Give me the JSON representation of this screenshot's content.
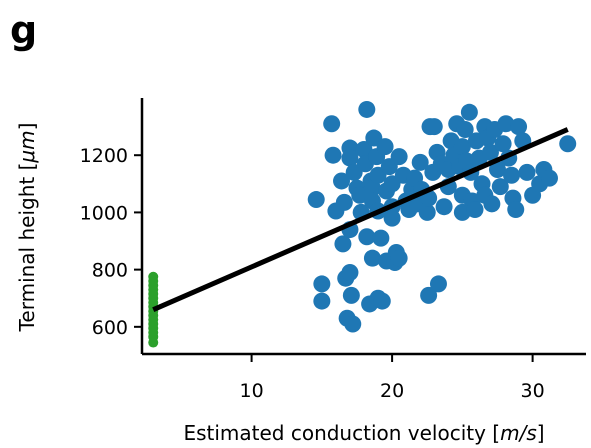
{
  "panel_label": "g",
  "chart_data": {
    "type": "scatter",
    "xlabel_text": "Estimated conduction velocity [",
    "xlabel_unit": "m/s",
    "xlabel_end": "]",
    "ylabel_text": "Terminal height [",
    "ylabel_unit": "μm",
    "ylabel_end": "]",
    "xlim": [
      2.2,
      33.8
    ],
    "ylim": [
      505,
      1400
    ],
    "xticks": [
      10,
      20,
      30
    ],
    "yticks": [
      600,
      800,
      1000,
      1200
    ],
    "grid": false,
    "colors": {
      "blue": "#1f77b4",
      "green": "#2ca02c",
      "fit": "#000000"
    },
    "series": [
      {
        "color": "green",
        "points": [
          [
            3,
            545
          ],
          [
            3,
            565
          ],
          [
            3,
            580
          ],
          [
            3,
            595
          ],
          [
            3,
            610
          ],
          [
            3,
            625
          ],
          [
            3,
            640
          ],
          [
            3,
            655
          ],
          [
            3,
            670
          ],
          [
            3,
            685
          ],
          [
            3,
            700
          ],
          [
            3,
            715
          ],
          [
            3,
            730
          ],
          [
            3,
            745
          ],
          [
            3,
            760
          ],
          [
            3,
            775
          ]
        ]
      },
      {
        "color": "blue",
        "points": [
          [
            14.6,
            1045
          ],
          [
            15,
            750
          ],
          [
            15,
            690
          ],
          [
            15.7,
            1310
          ],
          [
            15.8,
            1200
          ],
          [
            16,
            1005
          ],
          [
            16.4,
            1110
          ],
          [
            16.5,
            890
          ],
          [
            16.6,
            1035
          ],
          [
            16.7,
            770
          ],
          [
            16.8,
            630
          ],
          [
            17,
            1225
          ],
          [
            17,
            1190
          ],
          [
            17,
            940
          ],
          [
            17,
            790
          ],
          [
            17.1,
            710
          ],
          [
            17.2,
            610
          ],
          [
            17.3,
            1140
          ],
          [
            17.5,
            1085
          ],
          [
            17.7,
            1060
          ],
          [
            17.8,
            1000
          ],
          [
            18,
            1220
          ],
          [
            18.1,
            1170
          ],
          [
            18.2,
            1360
          ],
          [
            18.2,
            915
          ],
          [
            18.4,
            680
          ],
          [
            18.5,
            1110
          ],
          [
            18.6,
            1085
          ],
          [
            18.6,
            1040
          ],
          [
            18.6,
            840
          ],
          [
            18.7,
            1260
          ],
          [
            18.9,
            1195
          ],
          [
            19,
            1130
          ],
          [
            19,
            1005
          ],
          [
            19,
            700
          ],
          [
            19.2,
            910
          ],
          [
            19.3,
            690
          ],
          [
            19.5,
            1230
          ],
          [
            19.6,
            1075
          ],
          [
            19.6,
            830
          ],
          [
            19.8,
            1160
          ],
          [
            20,
            1100
          ],
          [
            20,
            1020
          ],
          [
            20,
            980
          ],
          [
            20.2,
            825
          ],
          [
            20.3,
            860
          ],
          [
            20.5,
            1195
          ],
          [
            20.5,
            840
          ],
          [
            20.8,
            1130
          ],
          [
            21,
            1040
          ],
          [
            21.2,
            1010
          ],
          [
            21.4,
            1080
          ],
          [
            21.6,
            1120
          ],
          [
            21.8,
            1030
          ],
          [
            22,
            1175
          ],
          [
            22.1,
            1080
          ],
          [
            22.4,
            1060
          ],
          [
            22.5,
            1000
          ],
          [
            22.6,
            1050
          ],
          [
            22.6,
            710
          ],
          [
            22.7,
            1300
          ],
          [
            22.9,
            1140
          ],
          [
            23,
            1300
          ],
          [
            23.2,
            1210
          ],
          [
            23.3,
            750
          ],
          [
            23.5,
            1170
          ],
          [
            23.7,
            1020
          ],
          [
            24,
            1150
          ],
          [
            24,
            1090
          ],
          [
            24.2,
            1250
          ],
          [
            24.4,
            1200
          ],
          [
            24.6,
            1310
          ],
          [
            24.8,
            1160
          ],
          [
            25,
            1230
          ],
          [
            25,
            1060
          ],
          [
            25,
            1000
          ],
          [
            25.2,
            1290
          ],
          [
            25.3,
            1180
          ],
          [
            25.5,
            1350
          ],
          [
            25.6,
            1140
          ],
          [
            25.7,
            1040
          ],
          [
            25.9,
            1010
          ],
          [
            26,
            1250
          ],
          [
            26.2,
            1190
          ],
          [
            26.4,
            1100
          ],
          [
            26.6,
            1300
          ],
          [
            26.6,
            1060
          ],
          [
            26.8,
            1260
          ],
          [
            27,
            1210
          ],
          [
            27.1,
            1030
          ],
          [
            27.3,
            1290
          ],
          [
            27.5,
            1150
          ],
          [
            27.7,
            1090
          ],
          [
            27.9,
            1240
          ],
          [
            28.1,
            1310
          ],
          [
            28.3,
            1190
          ],
          [
            28.5,
            1130
          ],
          [
            28.6,
            1050
          ],
          [
            28.8,
            1010
          ],
          [
            29,
            1300
          ],
          [
            29.3,
            1250
          ],
          [
            29.6,
            1140
          ],
          [
            30,
            1060
          ],
          [
            30.5,
            1100
          ],
          [
            30.8,
            1150
          ],
          [
            31.2,
            1120
          ],
          [
            32.5,
            1240
          ]
        ]
      }
    ],
    "fit_line": {
      "x": [
        3,
        32.5
      ],
      "y": [
        660,
        1290
      ]
    }
  }
}
